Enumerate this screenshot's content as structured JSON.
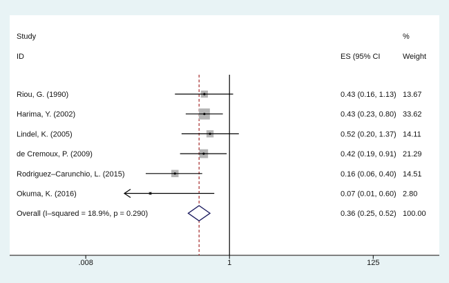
{
  "chart_data": {
    "type": "forest",
    "header": {
      "study": "Study",
      "id": "ID",
      "es": "ES (95% CI",
      "pct": "%",
      "weight": "Weight"
    },
    "studies": [
      {
        "label": "Riou, G. (1990)",
        "es": 0.43,
        "lo": 0.16,
        "hi": 1.13,
        "ci_text": "0.43 (0.16, 1.13)",
        "weight": 13.67,
        "weight_text": "13.67"
      },
      {
        "label": "Harima, Y. (2002)",
        "es": 0.43,
        "lo": 0.23,
        "hi": 0.8,
        "ci_text": "0.43 (0.23, 0.80)",
        "weight": 33.62,
        "weight_text": "33.62"
      },
      {
        "label": "Lindel, K. (2005)",
        "es": 0.52,
        "lo": 0.2,
        "hi": 1.37,
        "ci_text": "0.52 (0.20, 1.37)",
        "weight": 14.11,
        "weight_text": "14.11"
      },
      {
        "label": "de Cremoux, P. (2009)",
        "es": 0.42,
        "lo": 0.19,
        "hi": 0.91,
        "ci_text": "0.42 (0.19, 0.91)",
        "weight": 21.29,
        "weight_text": "21.29"
      },
      {
        "label": "Rodriguez–Carunchio, L. (2015)",
        "es": 0.16,
        "lo": 0.06,
        "hi": 0.4,
        "ci_text": "0.16 (0.06, 0.40)",
        "weight": 14.51,
        "weight_text": "14.51"
      },
      {
        "label": "Okuma, K. (2016)",
        "es": 0.07,
        "lo": 0.01,
        "hi": 0.6,
        "ci_text": "0.07 (0.01, 0.60)",
        "weight": 2.8,
        "weight_text": "2.80",
        "lower_truncated": true
      }
    ],
    "overall": {
      "label": "Overall  (I–squared = 18.9%, p = 0.290)",
      "es": 0.36,
      "lo": 0.25,
      "hi": 0.52,
      "ci_text": "0.36 (0.25, 0.52)",
      "weight_text": "100.00"
    },
    "x_ticks": [
      {
        "value": 0.008,
        "label": ".008"
      },
      {
        "value": 1,
        "label": "1"
      },
      {
        "value": 125,
        "label": "125"
      }
    ],
    "xlim": [
      0.0009,
      1100
    ],
    "x_scale": "log",
    "null_line": 1,
    "colors": {
      "background": "#e8f3f5",
      "plot_background": "#ffffff",
      "box": "#b5b5b5",
      "line": "#000000",
      "overall_line": "#a52a2a",
      "diamond": "#1a1a5e"
    }
  }
}
